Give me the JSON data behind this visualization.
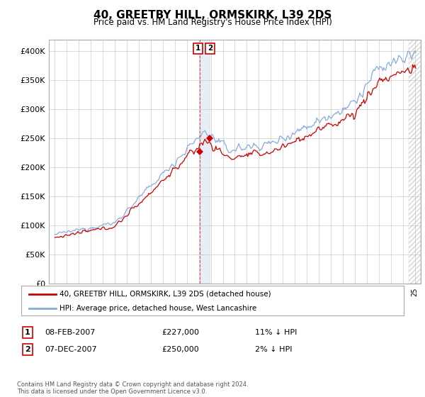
{
  "title": "40, GREETBY HILL, ORMSKIRK, L39 2DS",
  "subtitle": "Price paid vs. HM Land Registry's House Price Index (HPI)",
  "legend_label1": "40, GREETBY HILL, ORMSKIRK, L39 2DS (detached house)",
  "legend_label2": "HPI: Average price, detached house, West Lancashire",
  "annotation1_date": "08-FEB-2007",
  "annotation1_price": "£227,000",
  "annotation1_hpi": "11% ↓ HPI",
  "annotation2_date": "07-DEC-2007",
  "annotation2_price": "£250,000",
  "annotation2_hpi": "2% ↓ HPI",
  "footnote": "Contains HM Land Registry data © Crown copyright and database right 2024.\nThis data is licensed under the Open Government Licence v3.0.",
  "ylim": [
    0,
    420000
  ],
  "yticks": [
    0,
    50000,
    100000,
    150000,
    200000,
    250000,
    300000,
    350000,
    400000
  ],
  "ytick_labels": [
    "£0",
    "£50K",
    "£100K",
    "£150K",
    "£200K",
    "£250K",
    "£300K",
    "£350K",
    "£400K"
  ],
  "color_price": "#cc0000",
  "color_hpi": "#88aadd",
  "vline_color": "#cc0000",
  "annotation_box_color": "#cc0000",
  "background_color": "#ffffff",
  "grid_color": "#cccccc",
  "sale1_year": 2007.083,
  "sale1_price": 227000,
  "sale2_year": 2007.917,
  "sale2_price": 250000,
  "xmin": 1994.5,
  "xmax": 2025.5,
  "hatch_start": 2024.5
}
